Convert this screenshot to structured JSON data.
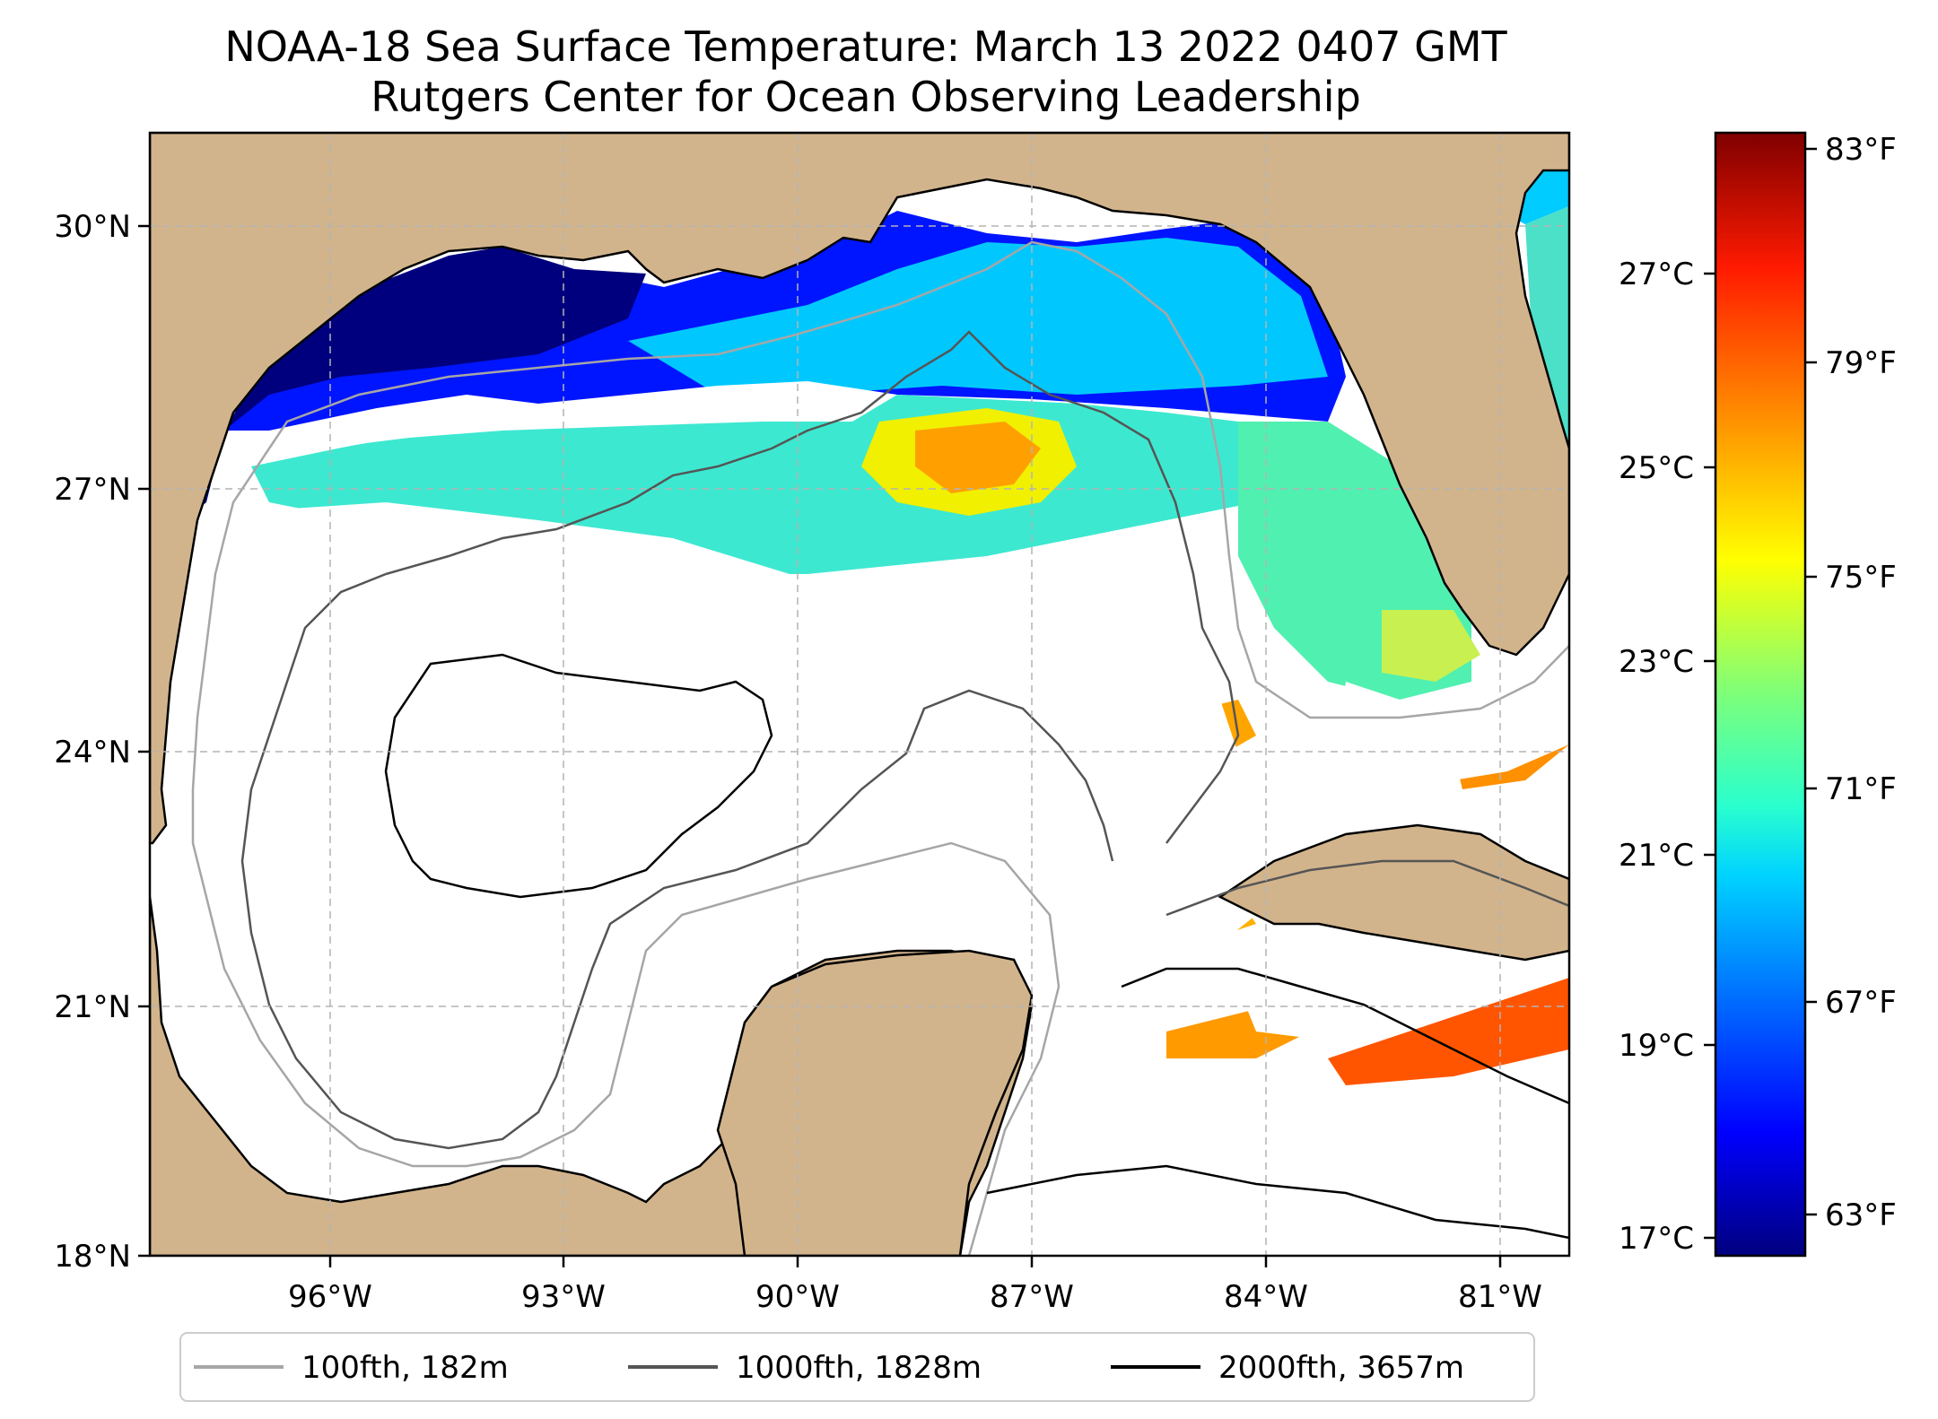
{
  "title": {
    "line1": "NOAA-18 Sea Surface Temperature: March 13 2022 0407 GMT",
    "line2": "Rutgers Center for Ocean Observing Leadership"
  },
  "axes": {
    "lat_labels": [
      "30°N",
      "27°N",
      "24°N",
      "21°N",
      "18°N"
    ],
    "lon_labels": [
      "96°W",
      "93°W",
      "90°W",
      "87°W",
      "84°W",
      "81°W"
    ],
    "celsius_labels": [
      "27°C",
      "25°C",
      "23°C",
      "21°C",
      "19°C",
      "17°C"
    ],
    "fahrenheit_labels": [
      "83°F",
      "79°F",
      "75°F",
      "71°F",
      "67°F",
      "63°F"
    ]
  },
  "legend": {
    "items": [
      {
        "label": "100fth, 182m",
        "color": "#a6a6a6"
      },
      {
        "label": "1000fth, 1828m",
        "color": "#555555"
      },
      {
        "label": "2000fth, 3657m",
        "color": "#000000"
      }
    ]
  },
  "colors": {
    "land": "#d2b48c",
    "ocean_nodata": "#ffffff",
    "colormap": [
      "#00007f",
      "#0000ff",
      "#007fff",
      "#00ffff",
      "#7fff7f",
      "#ffff00",
      "#ff7f00",
      "#ff0000",
      "#7f0000"
    ]
  }
}
